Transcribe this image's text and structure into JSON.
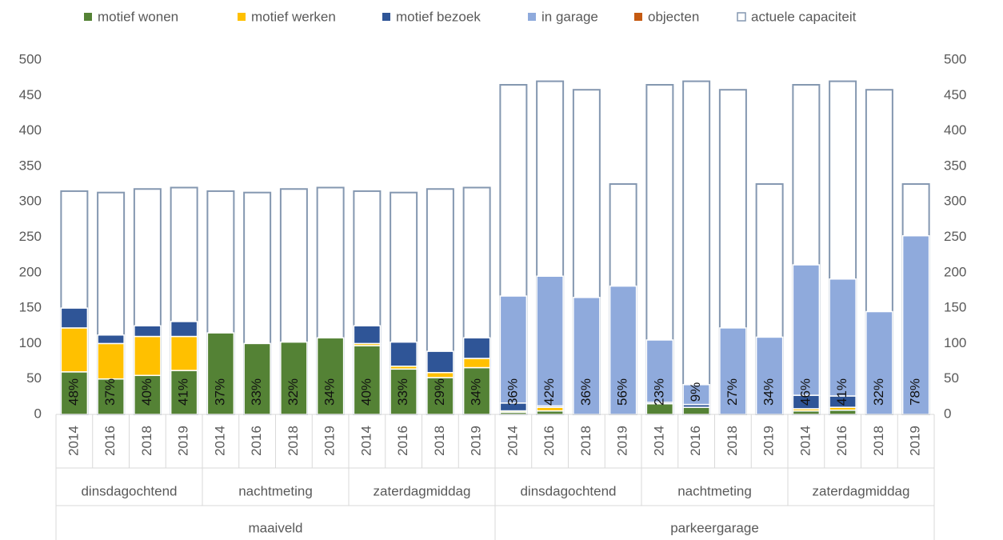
{
  "chart_data": {
    "type": "bar",
    "stacked": true,
    "categories": [
      "2014",
      "2016",
      "2018",
      "2019",
      "2014",
      "2016",
      "2018",
      "2019",
      "2014",
      "2016",
      "2018",
      "2019",
      "2014",
      "2016",
      "2018",
      "2019",
      "2014",
      "2016",
      "2018",
      "2019",
      "2014",
      "2016",
      "2018",
      "2019"
    ],
    "periods": [
      "dinsdagochtend",
      "nachtmeting",
      "zaterdagmiddag",
      "dinsdagochtend",
      "nachtmeting",
      "zaterdagmiddag"
    ],
    "locations": [
      "maaiveld",
      "parkeergarage"
    ],
    "series": [
      {
        "name": "motief wonen",
        "color": "#548235",
        "values": [
          60,
          50,
          55,
          62,
          115,
          100,
          102,
          108,
          97,
          64,
          52,
          66,
          3,
          5,
          0,
          0,
          15,
          10,
          0,
          0,
          5,
          6,
          0,
          0
        ]
      },
      {
        "name": "motief werken",
        "color": "#ffc000",
        "values": [
          62,
          50,
          55,
          48,
          0,
          0,
          0,
          0,
          3,
          4,
          7,
          13,
          2,
          5,
          0,
          0,
          0,
          0,
          0,
          0,
          3,
          4,
          0,
          0
        ]
      },
      {
        "name": "motief bezoek",
        "color": "#2f5597",
        "values": [
          28,
          12,
          15,
          21,
          0,
          0,
          0,
          0,
          25,
          34,
          30,
          29,
          11,
          2,
          0,
          0,
          2,
          4,
          0,
          0,
          19,
          16,
          0,
          0
        ]
      },
      {
        "name": "in garage",
        "color": "#8faadc",
        "values": [
          0,
          0,
          0,
          0,
          0,
          0,
          0,
          0,
          0,
          0,
          0,
          0,
          151,
          183,
          165,
          181,
          88,
          28,
          122,
          109,
          184,
          165,
          145,
          252
        ]
      },
      {
        "name": "objecten",
        "color": "#c55a11",
        "values": [
          0,
          0,
          0,
          0,
          0,
          0,
          0,
          0,
          0,
          0,
          0,
          0,
          0,
          0,
          0,
          0,
          0,
          0,
          0,
          0,
          0,
          0,
          0,
          0
        ]
      },
      {
        "name": "actuele capaciteit",
        "color": "#8497b0",
        "outline": true,
        "values": [
          315,
          313,
          318,
          320,
          315,
          313,
          318,
          320,
          315,
          313,
          318,
          320,
          465,
          470,
          458,
          325,
          465,
          470,
          458,
          325,
          465,
          470,
          458,
          325
        ]
      }
    ],
    "percentages": {
      "values": [
        48,
        37,
        40,
        41,
        37,
        33,
        32,
        34,
        40,
        33,
        29,
        34,
        36,
        42,
        36,
        56,
        23,
        9,
        27,
        34,
        46,
        41,
        32,
        78
      ],
      "value_labels": [
        "48%",
        "37%",
        "40%",
        "41%",
        "37%",
        "33%",
        "32%",
        "34%",
        "40%",
        "33%",
        "29%",
        "34%",
        "36%",
        "42%",
        "36%",
        "56%",
        "23%",
        "9%",
        "27%",
        "34%",
        "46%",
        "41%",
        "32%",
        "78%"
      ]
    },
    "ylim": [
      0,
      500
    ],
    "yticks": [
      0,
      50,
      100,
      150,
      200,
      250,
      300,
      350,
      400,
      450,
      500
    ],
    "y2lim": [
      0,
      500
    ],
    "y2ticks": [
      0,
      50,
      100,
      150,
      200,
      250,
      300,
      350,
      400,
      450,
      500
    ],
    "legend": "top"
  }
}
